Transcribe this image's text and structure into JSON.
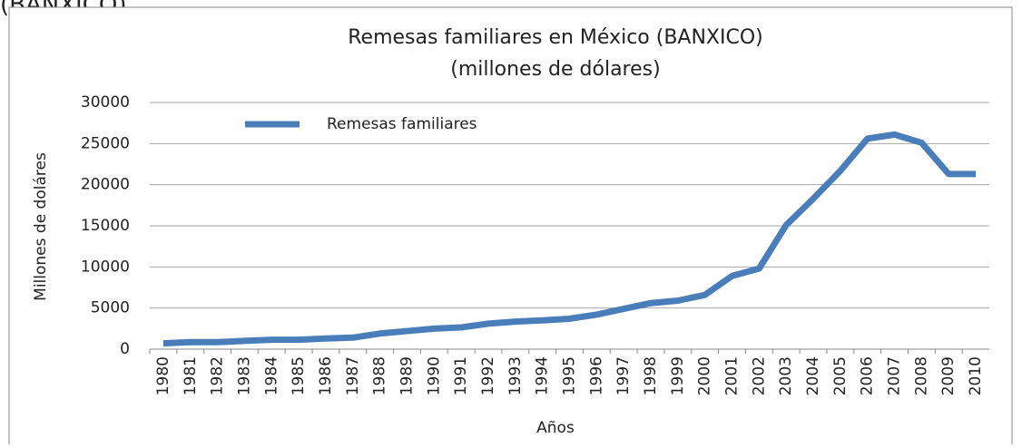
{
  "page_text": "(BANXICO).",
  "chart_data": {
    "type": "line",
    "title": "Remesas familiares en México (BANXICO)",
    "subtitle": "(millones de dólares)",
    "x_label": "Años",
    "y_label": "Millones de doláres",
    "categories": [
      "1980",
      "1981",
      "1982",
      "1983",
      "1984",
      "1985",
      "1986",
      "1987",
      "1988",
      "1989",
      "1990",
      "1991",
      "1992",
      "1993",
      "1994",
      "1995",
      "1996",
      "1997",
      "1998",
      "1999",
      "2000",
      "2001",
      "2002",
      "2003",
      "2004",
      "2005",
      "2006",
      "2007",
      "2008",
      "2009",
      "2010"
    ],
    "series": [
      {
        "name": "Remesas familiares",
        "color": "#4a7ebb",
        "values": [
          700,
          860,
          850,
          1000,
          1150,
          1150,
          1300,
          1400,
          1900,
          2200,
          2500,
          2650,
          3100,
          3350,
          3500,
          3700,
          4200,
          4900,
          5600,
          5900,
          6600,
          8900,
          9800,
          15100,
          18300,
          21700,
          25600,
          26100,
          25100,
          21300,
          21300
        ]
      }
    ],
    "ylim": [
      0,
      30000
    ],
    "yticks": [
      0,
      5000,
      10000,
      15000,
      20000,
      25000,
      30000
    ],
    "grid": true,
    "legend": "top-left"
  }
}
